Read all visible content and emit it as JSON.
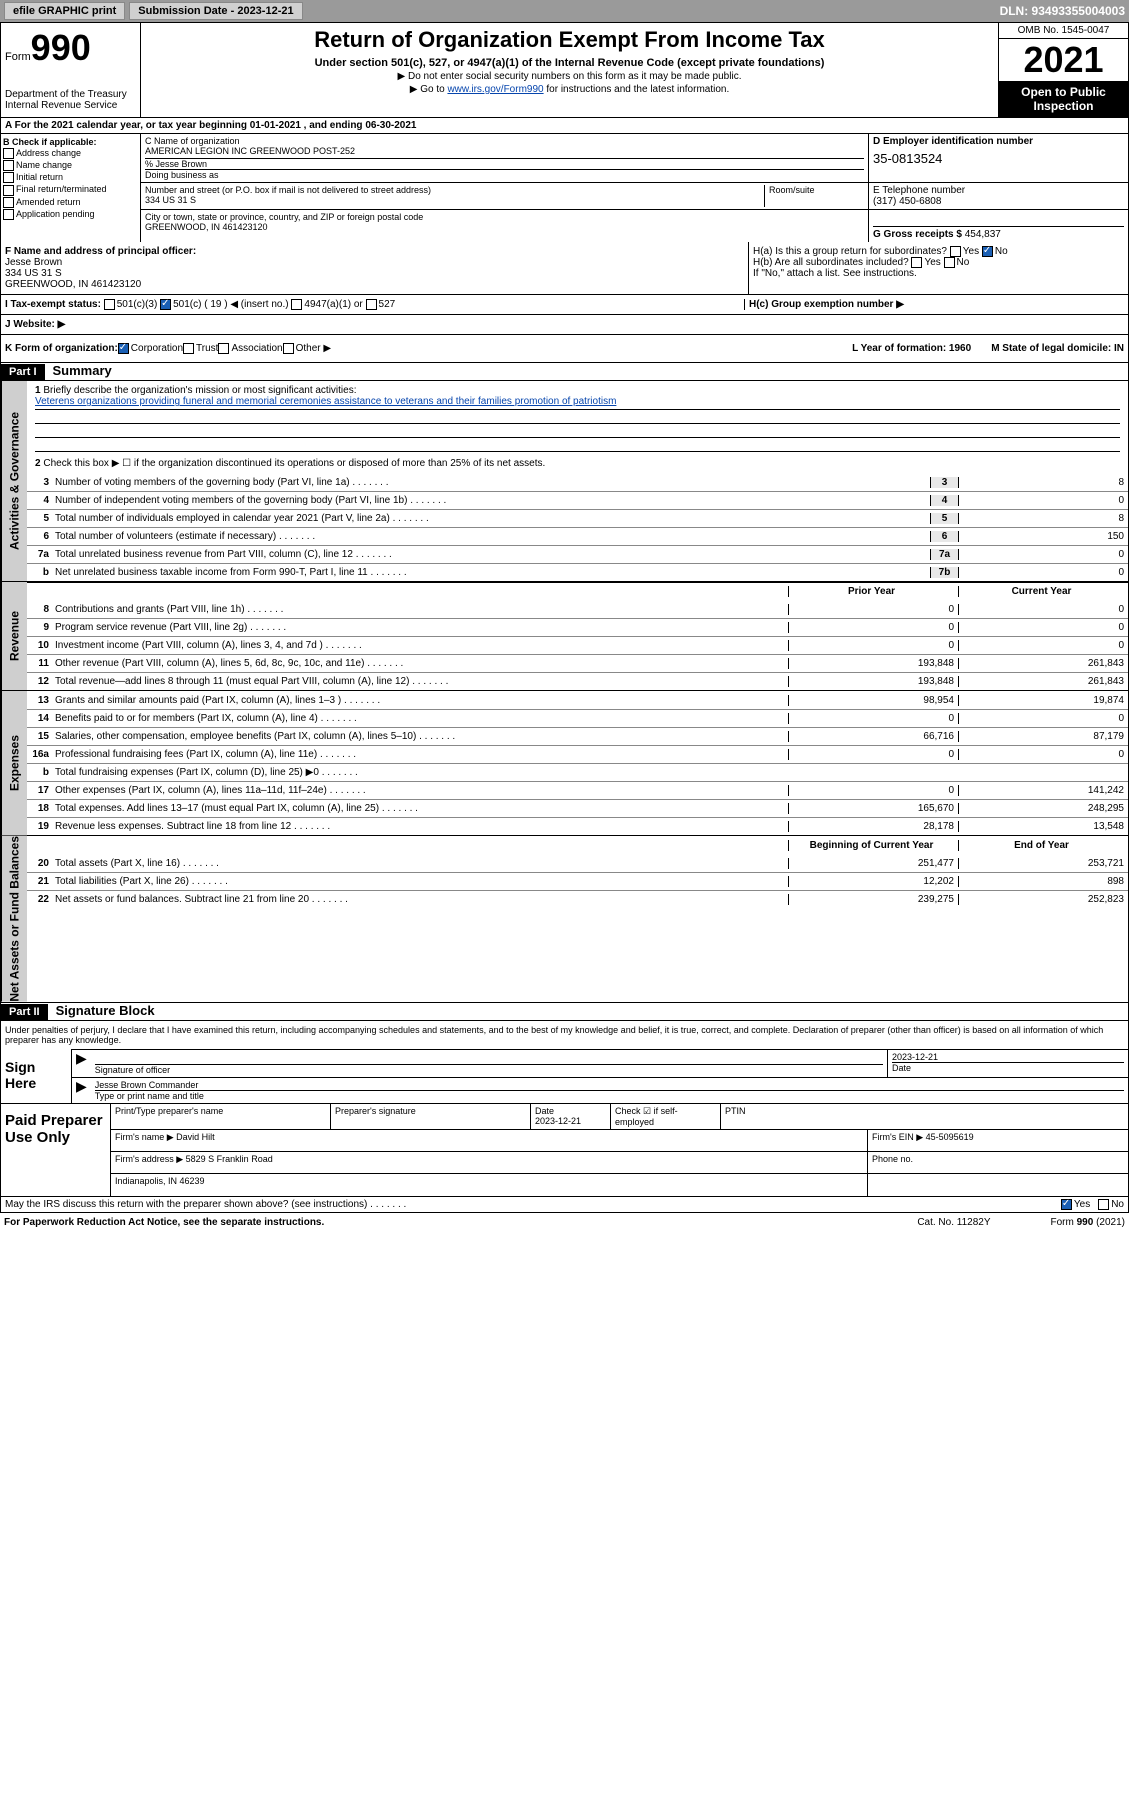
{
  "topbar": {
    "efile": "efile GRAPHIC print",
    "subdate_lbl": "Submission Date - ",
    "subdate": "2023-12-21",
    "dln": "DLN: 93493355004003"
  },
  "header": {
    "form_word": "Form",
    "form_num": "990",
    "dept": "Department of the Treasury Internal Revenue Service",
    "title": "Return of Organization Exempt From Income Tax",
    "sub": "Under section 501(c), 527, or 4947(a)(1) of the Internal Revenue Code (except private foundations)",
    "note1": "▶ Do not enter social security numbers on this form as it may be made public.",
    "note2_pre": "▶ Go to ",
    "note2_link": "www.irs.gov/Form990",
    "note2_post": " for instructions and the latest information.",
    "omb": "OMB No. 1545-0047",
    "year": "2021",
    "inspect": "Open to Public Inspection"
  },
  "rowA": "A  For the 2021 calendar year, or tax year beginning 01-01-2021   , and ending 06-30-2021",
  "colB": {
    "hdr": "B Check if applicable:",
    "items": [
      "Address change",
      "Name change",
      "Initial return",
      "Final return/terminated",
      "Amended return",
      "Application pending"
    ]
  },
  "colC": {
    "name_lbl": "C Name of organization",
    "name": "AMERICAN LEGION INC GREENWOOD POST-252",
    "care_lbl": "% Jesse Brown",
    "dba_lbl": "Doing business as",
    "addr_lbl": "Number and street (or P.O. box if mail is not delivered to street address)",
    "room_lbl": "Room/suite",
    "addr": "334 US 31 S",
    "city_lbl": "City or town, state or province, country, and ZIP or foreign postal code",
    "city": "GREENWOOD, IN  461423120"
  },
  "colD": {
    "ein_lbl": "D Employer identification number",
    "ein": "35-0813524",
    "tel_lbl": "E Telephone number",
    "tel": "(317) 450-6808",
    "gross_lbl": "G Gross receipts $ ",
    "gross": "454,837"
  },
  "rowF": {
    "lbl": "F  Name and address of principal officer:",
    "name": "Jesse Brown",
    "addr1": "334 US 31 S",
    "addr2": "GREENWOOD, IN  461423120"
  },
  "rowH": {
    "a": "H(a)  Is this a group return for subordinates?",
    "b": "H(b)  Are all subordinates included?",
    "b_note": "If \"No,\" attach a list. See instructions.",
    "c": "H(c)  Group exemption number ▶",
    "yes": "Yes",
    "no": "No"
  },
  "rowI": {
    "lbl": "I   Tax-exempt status:",
    "o1": "501(c)(3)",
    "o2": "501(c) ( 19 ) ◀ (insert no.)",
    "o3": "4947(a)(1) or",
    "o4": "527"
  },
  "rowJ": "J   Website: ▶",
  "rowK": {
    "lbl": "K Form of organization:",
    "o1": "Corporation",
    "o2": "Trust",
    "o3": "Association",
    "o4": "Other ▶",
    "L": "L Year of formation: 1960",
    "M": "M State of legal domicile: IN"
  },
  "part1": {
    "hdr": "Part I",
    "title": "Summary",
    "q1": "Briefly describe the organization's mission or most significant activities:",
    "mission": "Veterens organizations providing funeral and memorial ceremonies assistance to veterans and their families promotion of patriotism",
    "q2": "Check this box ▶ ☐  if the organization discontinued its operations or disposed of more than 25% of its net assets."
  },
  "vtabs": {
    "ag": "Activities & Governance",
    "rev": "Revenue",
    "exp": "Expenses",
    "nafb": "Net Assets or Fund Balances"
  },
  "ag_lines": [
    {
      "n": "3",
      "t": "Number of voting members of the governing body (Part VI, line 1a)",
      "b": "3",
      "v": "8"
    },
    {
      "n": "4",
      "t": "Number of independent voting members of the governing body (Part VI, line 1b)",
      "b": "4",
      "v": "0"
    },
    {
      "n": "5",
      "t": "Total number of individuals employed in calendar year 2021 (Part V, line 2a)",
      "b": "5",
      "v": "8"
    },
    {
      "n": "6",
      "t": "Total number of volunteers (estimate if necessary)",
      "b": "6",
      "v": "150"
    },
    {
      "n": "7a",
      "t": "Total unrelated business revenue from Part VIII, column (C), line 12",
      "b": "7a",
      "v": "0"
    },
    {
      "n": "b",
      "t": "Net unrelated business taxable income from Form 990-T, Part I, line 11",
      "b": "7b",
      "v": "0"
    }
  ],
  "two_col_hdr": {
    "prior": "Prior Year",
    "current": "Current Year",
    "begin": "Beginning of Current Year",
    "end": "End of Year"
  },
  "rev_lines": [
    {
      "n": "8",
      "t": "Contributions and grants (Part VIII, line 1h)",
      "p": "0",
      "c": "0"
    },
    {
      "n": "9",
      "t": "Program service revenue (Part VIII, line 2g)",
      "p": "0",
      "c": "0"
    },
    {
      "n": "10",
      "t": "Investment income (Part VIII, column (A), lines 3, 4, and 7d )",
      "p": "0",
      "c": "0"
    },
    {
      "n": "11",
      "t": "Other revenue (Part VIII, column (A), lines 5, 6d, 8c, 9c, 10c, and 11e)",
      "p": "193,848",
      "c": "261,843"
    },
    {
      "n": "12",
      "t": "Total revenue—add lines 8 through 11 (must equal Part VIII, column (A), line 12)",
      "p": "193,848",
      "c": "261,843"
    }
  ],
  "exp_lines": [
    {
      "n": "13",
      "t": "Grants and similar amounts paid (Part IX, column (A), lines 1–3 )",
      "p": "98,954",
      "c": "19,874"
    },
    {
      "n": "14",
      "t": "Benefits paid to or for members (Part IX, column (A), line 4)",
      "p": "0",
      "c": "0"
    },
    {
      "n": "15",
      "t": "Salaries, other compensation, employee benefits (Part IX, column (A), lines 5–10)",
      "p": "66,716",
      "c": "87,179"
    },
    {
      "n": "16a",
      "t": "Professional fundraising fees (Part IX, column (A), line 11e)",
      "p": "0",
      "c": "0"
    },
    {
      "n": "b",
      "t": "Total fundraising expenses (Part IX, column (D), line 25) ▶0",
      "p": "",
      "c": "",
      "shaded": true
    },
    {
      "n": "17",
      "t": "Other expenses (Part IX, column (A), lines 11a–11d, 11f–24e)",
      "p": "0",
      "c": "141,242"
    },
    {
      "n": "18",
      "t": "Total expenses. Add lines 13–17 (must equal Part IX, column (A), line 25)",
      "p": "165,670",
      "c": "248,295"
    },
    {
      "n": "19",
      "t": "Revenue less expenses. Subtract line 18 from line 12",
      "p": "28,178",
      "c": "13,548"
    }
  ],
  "nafb_lines": [
    {
      "n": "20",
      "t": "Total assets (Part X, line 16)",
      "p": "251,477",
      "c": "253,721"
    },
    {
      "n": "21",
      "t": "Total liabilities (Part X, line 26)",
      "p": "12,202",
      "c": "898"
    },
    {
      "n": "22",
      "t": "Net assets or fund balances. Subtract line 21 from line 20",
      "p": "239,275",
      "c": "252,823"
    }
  ],
  "part2": {
    "hdr": "Part II",
    "title": "Signature Block"
  },
  "sig": {
    "decl": "Under penalties of perjury, I declare that I have examined this return, including accompanying schedules and statements, and to the best of my knowledge and belief, it is true, correct, and complete. Declaration of preparer (other than officer) is based on all information of which preparer has any knowledge.",
    "here": "Sign Here",
    "sig_lbl": "Signature of officer",
    "date_lbl": "Date",
    "date": "2023-12-21",
    "name": "Jesse Brown  Commander",
    "name_lbl": "Type or print name and title"
  },
  "prep": {
    "title": "Paid Preparer Use Only",
    "h1": "Print/Type preparer's name",
    "h2": "Preparer's signature",
    "h3": "Date",
    "h3v": "2023-12-21",
    "h4": "Check ☑ if self-employed",
    "h5": "PTIN",
    "firm_lbl": "Firm's name    ▶ ",
    "firm": "David Hilt",
    "ein_lbl": "Firm's EIN ▶ ",
    "ein": "45-5095619",
    "addr_lbl": "Firm's address ▶ ",
    "addr1": "5829 S Franklin Road",
    "addr2": "Indianapolis, IN  46239",
    "phone_lbl": "Phone no."
  },
  "discuss": "May the IRS discuss this return with the preparer shown above? (see instructions)",
  "footer": {
    "pra": "For Paperwork Reduction Act Notice, see the separate instructions.",
    "cat": "Cat. No. 11282Y",
    "form": "Form 990 (2021)"
  }
}
